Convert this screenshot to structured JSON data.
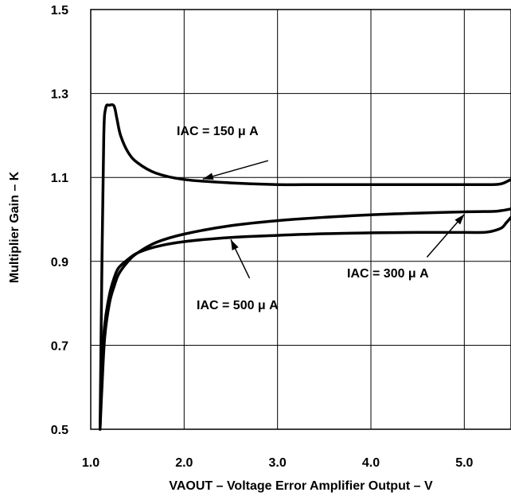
{
  "chart_data": {
    "type": "line",
    "title": "",
    "xlabel": "VAOUT – Voltage Error Amplifier Output – V",
    "ylabel": "Multiplier Gain – K",
    "xlim": [
      1.0,
      5.5
    ],
    "ylim": [
      0.5,
      1.5
    ],
    "x_ticks": [
      1.0,
      2.0,
      3.0,
      4.0,
      5.0
    ],
    "x_tick_labels": [
      "1.0",
      "2.0",
      "3.0",
      "4.0",
      "5.0"
    ],
    "y_ticks": [
      0.5,
      0.7,
      0.9,
      1.1,
      1.3,
      1.5
    ],
    "y_tick_labels": [
      "0.5",
      "0.7",
      "0.9",
      "1.1",
      "1.3",
      "1.5"
    ],
    "grid": true,
    "legend": "none",
    "series": [
      {
        "name": "IAC = 150 μA",
        "x": [
          1.1,
          1.12,
          1.14,
          1.16,
          1.2,
          1.25,
          1.28,
          1.32,
          1.4,
          1.5,
          1.7,
          2.0,
          2.5,
          3.0,
          3.5,
          4.0,
          4.5,
          5.0,
          5.3,
          5.4,
          5.5
        ],
        "y": [
          0.5,
          0.9,
          1.2,
          1.265,
          1.272,
          1.27,
          1.24,
          1.2,
          1.16,
          1.135,
          1.11,
          1.095,
          1.087,
          1.083,
          1.083,
          1.083,
          1.083,
          1.083,
          1.083,
          1.085,
          1.095
        ]
      },
      {
        "name": "IAC = 300 μA",
        "x": [
          1.1,
          1.12,
          1.15,
          1.2,
          1.25,
          1.3,
          1.4,
          1.5,
          1.7,
          2.0,
          2.5,
          3.0,
          3.5,
          4.0,
          4.5,
          5.0,
          5.3,
          5.4,
          5.5
        ],
        "y": [
          0.5,
          0.6,
          0.72,
          0.8,
          0.84,
          0.87,
          0.9,
          0.92,
          0.945,
          0.965,
          0.985,
          0.997,
          1.005,
          1.011,
          1.015,
          1.018,
          1.019,
          1.021,
          1.025
        ]
      },
      {
        "name": "IAC = 500 μA",
        "x": [
          1.1,
          1.12,
          1.15,
          1.2,
          1.25,
          1.3,
          1.4,
          1.5,
          1.7,
          2.0,
          2.5,
          3.0,
          3.5,
          4.0,
          4.5,
          5.0,
          5.2,
          5.3,
          5.4,
          5.45,
          5.5
        ],
        "y": [
          0.5,
          0.65,
          0.75,
          0.82,
          0.86,
          0.885,
          0.905,
          0.92,
          0.935,
          0.947,
          0.957,
          0.962,
          0.966,
          0.968,
          0.969,
          0.969,
          0.969,
          0.972,
          0.98,
          0.992,
          1.005
        ]
      }
    ],
    "annotations": [
      {
        "text": "IAC = 150  μ A",
        "points_to": "IAC = 150 μA",
        "arrow_from": [
          2.9,
          1.14
        ],
        "arrow_to": [
          2.2,
          1.096
        ]
      },
      {
        "text": "IAC = 300 μ A",
        "points_to": "IAC = 300 μA",
        "arrow_from": [
          4.6,
          0.91
        ],
        "arrow_to": [
          5.0,
          1.012
        ]
      },
      {
        "text": "IAC = 500  μ A",
        "points_to": "IAC = 500 μA",
        "arrow_from": [
          2.7,
          0.86
        ],
        "arrow_to": [
          2.5,
          0.952
        ]
      }
    ]
  },
  "colors": {
    "line": "#000000",
    "grid": "#000000",
    "background": "#ffffff"
  }
}
